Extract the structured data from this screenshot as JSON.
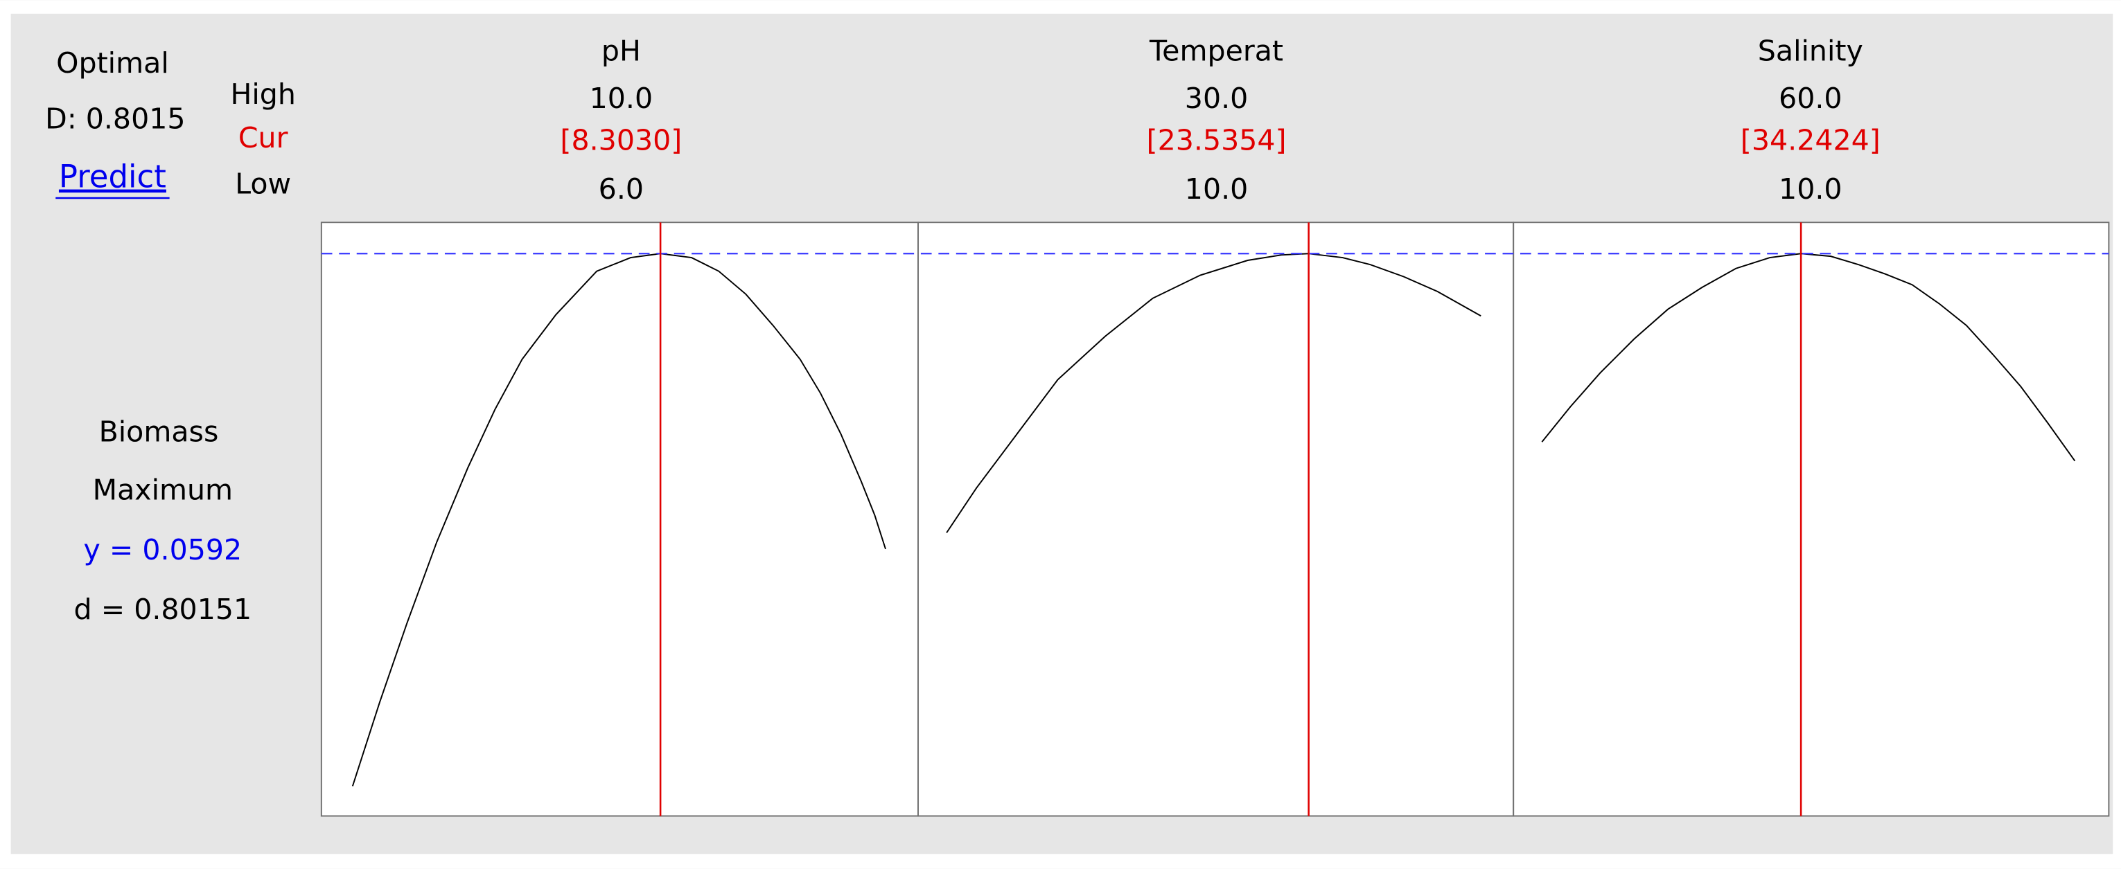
{
  "optimal": {
    "label": "Optimal",
    "d": "D: 0.8015",
    "predict": "Predict"
  },
  "rows": {
    "high": "High",
    "cur": "Cur",
    "low": "Low"
  },
  "factors": [
    {
      "name": "pH",
      "high": "10.0",
      "cur": "[8.3030]",
      "low": "6.0"
    },
    {
      "name": "Temperat",
      "high": "30.0",
      "cur": "[23.5354]",
      "low": "10.0"
    },
    {
      "name": "Salinity",
      "high": "60.0",
      "cur": "[34.2424]",
      "low": "10.0"
    }
  ],
  "response": {
    "name": "Biomass",
    "goal": "Maximum",
    "y": "y = 0.0592",
    "d": "d = 0.80151"
  }
}
